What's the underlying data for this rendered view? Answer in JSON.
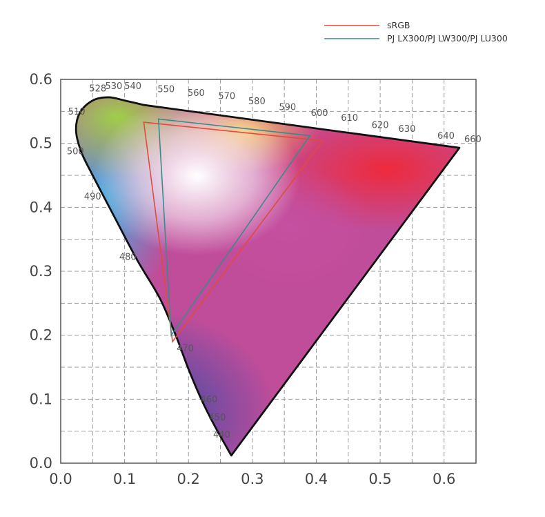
{
  "chart_data": {
    "type": "scatter",
    "title": "",
    "xlabel": "",
    "ylabel": "",
    "xlim": [
      0.0,
      0.65
    ],
    "ylim": [
      0.0,
      0.6
    ],
    "grid": true,
    "legend_position": "top-right",
    "x_ticks": [
      "0.0",
      "0.1",
      "0.2",
      "0.3",
      "0.4",
      "0.5",
      "0.6"
    ],
    "y_ticks": [
      "0.0",
      "0.1",
      "0.2",
      "0.3",
      "0.4",
      "0.5",
      "0.6"
    ],
    "x_tick_values": [
      0,
      0.1,
      0.2,
      0.3,
      0.4,
      0.5,
      0.6
    ],
    "y_tick_values": [
      0,
      0.1,
      0.2,
      0.3,
      0.4,
      0.5,
      0.6
    ],
    "spectral_locus": [
      {
        "x": 0.267,
        "y": 0.012
      },
      {
        "x": 0.24,
        "y": 0.06
      },
      {
        "x": 0.22,
        "y": 0.1
      },
      {
        "x": 0.2,
        "y": 0.147
      },
      {
        "x": 0.18,
        "y": 0.2
      },
      {
        "x": 0.155,
        "y": 0.258
      },
      {
        "x": 0.12,
        "y": 0.317
      },
      {
        "x": 0.083,
        "y": 0.387
      },
      {
        "x": 0.05,
        "y": 0.45
      },
      {
        "x": 0.032,
        "y": 0.487
      },
      {
        "x": 0.024,
        "y": 0.52
      },
      {
        "x": 0.03,
        "y": 0.548
      },
      {
        "x": 0.05,
        "y": 0.567
      },
      {
        "x": 0.075,
        "y": 0.572
      },
      {
        "x": 0.1,
        "y": 0.567
      },
      {
        "x": 0.13,
        "y": 0.56
      },
      {
        "x": 0.624,
        "y": 0.493
      }
    ],
    "wavelength_labels": [
      {
        "label": "440",
        "x": 0.252,
        "y": 0.04
      },
      {
        "label": "450",
        "x": 0.245,
        "y": 0.067
      },
      {
        "label": "460",
        "x": 0.232,
        "y": 0.095
      },
      {
        "label": "470",
        "x": 0.195,
        "y": 0.175
      },
      {
        "label": "480",
        "x": 0.105,
        "y": 0.318
      },
      {
        "label": "490",
        "x": 0.05,
        "y": 0.412
      },
      {
        "label": "500",
        "x": 0.023,
        "y": 0.483
      },
      {
        "label": "510",
        "x": 0.025,
        "y": 0.545
      },
      {
        "label": "528",
        "x": 0.058,
        "y": 0.581
      },
      {
        "label": "530",
        "x": 0.083,
        "y": 0.585
      },
      {
        "label": "540",
        "x": 0.113,
        "y": 0.585
      },
      {
        "label": "550",
        "x": 0.165,
        "y": 0.58
      },
      {
        "label": "560",
        "x": 0.212,
        "y": 0.574
      },
      {
        "label": "570",
        "x": 0.26,
        "y": 0.569
      },
      {
        "label": "580",
        "x": 0.307,
        "y": 0.561
      },
      {
        "label": "590",
        "x": 0.355,
        "y": 0.552
      },
      {
        "label": "600",
        "x": 0.405,
        "y": 0.543
      },
      {
        "label": "610",
        "x": 0.452,
        "y": 0.535
      },
      {
        "label": "620",
        "x": 0.5,
        "y": 0.524
      },
      {
        "label": "630",
        "x": 0.542,
        "y": 0.518
      },
      {
        "label": "640",
        "x": 0.603,
        "y": 0.507
      },
      {
        "label": "660",
        "x": 0.645,
        "y": 0.502
      }
    ],
    "series": [
      {
        "name": "sRGB",
        "color": "#e04a3f",
        "points": [
          {
            "x": 0.13,
            "y": 0.533
          },
          {
            "x": 0.41,
            "y": 0.504
          },
          {
            "x": 0.175,
            "y": 0.19
          }
        ]
      },
      {
        "name": "PJ LX300/PJ LW300/PJ LU300",
        "color": "#3a8a8a",
        "points": [
          {
            "x": 0.153,
            "y": 0.538
          },
          {
            "x": 0.39,
            "y": 0.512
          },
          {
            "x": 0.173,
            "y": 0.2
          }
        ]
      }
    ]
  }
}
